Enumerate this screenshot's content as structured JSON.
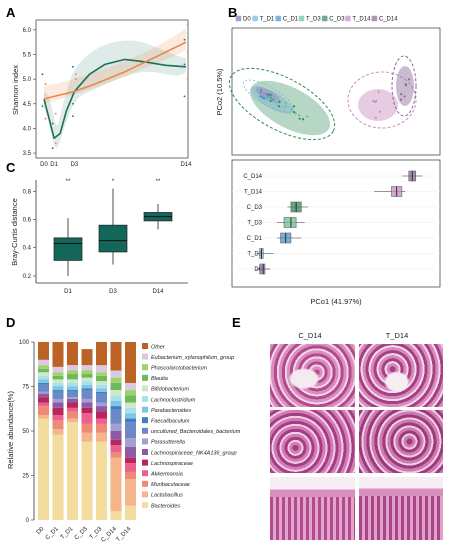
{
  "panels": {
    "a": "A",
    "b": "B",
    "c": "C",
    "d": "D",
    "e": "E"
  },
  "colors": {
    "D0": "#8c6fb0",
    "T_D1": "#74b6e3",
    "C_D1": "#4a95c9",
    "T_D3": "#6cc28e",
    "C_D3": "#2f8a5c",
    "T_D14": "#c98cc0",
    "C_D14": "#8a6a94",
    "shannon_T": "#e8894a",
    "shannon_C": "#1d6e5a",
    "bray": "#13665a"
  },
  "chart_data": [
    {
      "panel": "A",
      "type": "line",
      "ylabel": "Shannon index",
      "xlabel": "",
      "x_ticks": [
        "D0",
        "D1",
        "D3",
        "D14"
      ],
      "x": [
        0,
        1,
        3,
        14
      ],
      "y_ticks": [
        3.5,
        4.0,
        4.5,
        5.0,
        5.5,
        6.0
      ],
      "ylim": [
        3.4,
        6.2
      ],
      "series": [
        {
          "color_key": "shannon_C",
          "x": [
            0,
            0.5,
            1,
            1.6,
            2.2,
            3,
            4.5,
            6,
            8,
            10,
            12,
            14
          ],
          "values": [
            4.6,
            4.2,
            3.8,
            3.9,
            4.35,
            4.75,
            5.1,
            5.3,
            5.4,
            5.35,
            5.28,
            5.25
          ]
        },
        {
          "color_key": "shannon_T",
          "x": [
            0,
            1,
            3,
            5,
            8,
            11,
            14
          ],
          "values": [
            4.6,
            4.65,
            4.75,
            4.9,
            5.15,
            5.45,
            5.75
          ]
        }
      ],
      "points": [
        {
          "x": 0,
          "y": 5.1
        },
        {
          "x": 0,
          "y": 4.9
        },
        {
          "x": 0,
          "y": 4.45
        },
        {
          "x": 0,
          "y": 4.2
        },
        {
          "x": 1,
          "y": 4.1
        },
        {
          "x": 1,
          "y": 3.7
        },
        {
          "x": 1,
          "y": 3.6
        },
        {
          "x": 1,
          "y": 4.3
        },
        {
          "x": 3,
          "y": 5.25
        },
        {
          "x": 3,
          "y": 5.1
        },
        {
          "x": 3,
          "y": 4.5
        },
        {
          "x": 3,
          "y": 5.0
        },
        {
          "x": 3,
          "y": 4.25
        },
        {
          "x": 14,
          "y": 6.1
        },
        {
          "x": 14,
          "y": 5.8
        },
        {
          "x": 14,
          "y": 5.55
        },
        {
          "x": 14,
          "y": 5.3
        },
        {
          "x": 14,
          "y": 5.0
        },
        {
          "x": 14,
          "y": 4.65
        }
      ]
    },
    {
      "panel": "B-top",
      "type": "scatter",
      "xlabel": "",
      "ylabel": "PCo2 (10.5%)",
      "legend": [
        "D0",
        "T_D1",
        "C_D1",
        "T_D3",
        "C_D3",
        "T_D14",
        "C_D14"
      ],
      "legend_position": "top"
    },
    {
      "panel": "B-bottom",
      "type": "box",
      "xlabel": "PCo1 (41.97%)",
      "ylabel": "",
      "categories": [
        "C_D14",
        "T_D14",
        "C_D3",
        "T_D3",
        "C_D1",
        "T_D1",
        "D0"
      ],
      "boxes": [
        {
          "min": 0.34,
          "q1": 0.36,
          "median": 0.37,
          "q3": 0.38,
          "max": 0.4
        },
        {
          "min": 0.26,
          "q1": 0.31,
          "median": 0.325,
          "q3": 0.34,
          "max": 0.35
        },
        {
          "min": 0.01,
          "q1": 0.02,
          "median": 0.035,
          "q3": 0.05,
          "max": 0.07
        },
        {
          "min": -0.02,
          "q1": 0.0,
          "median": 0.02,
          "q3": 0.035,
          "max": 0.06
        },
        {
          "min": -0.02,
          "q1": -0.01,
          "median": 0.005,
          "q3": 0.02,
          "max": 0.05
        },
        {
          "min": -0.08,
          "q1": -0.07,
          "median": -0.065,
          "q3": -0.06,
          "max": -0.03
        },
        {
          "min": -0.08,
          "q1": -0.07,
          "median": -0.06,
          "q3": -0.055,
          "max": -0.04
        }
      ],
      "xlim": [
        -0.15,
        0.45
      ]
    },
    {
      "panel": "C",
      "type": "box",
      "ylabel": "Bray-Curtis distance",
      "xlabel": "",
      "categories": [
        "D1",
        "D3",
        "D14"
      ],
      "significance": [
        "**",
        "*",
        "**"
      ],
      "y_ticks": [
        0.2,
        0.4,
        0.6,
        0.8
      ],
      "ylim": [
        0.15,
        0.88
      ],
      "boxes": [
        {
          "min": 0.2,
          "q1": 0.31,
          "median": 0.43,
          "q3": 0.47,
          "max": 0.61
        },
        {
          "min": 0.28,
          "q1": 0.37,
          "median": 0.45,
          "q3": 0.56,
          "max": 0.82
        },
        {
          "min": 0.53,
          "q1": 0.59,
          "median": 0.62,
          "q3": 0.65,
          "max": 0.71
        }
      ]
    },
    {
      "panel": "D",
      "type": "bar",
      "ylabel": "Relative abundance(%)",
      "xlabel": "",
      "categories": [
        "D0",
        "C_D1",
        "T_D1",
        "C_D3",
        "T_D3",
        "C_D14",
        "T_D14"
      ],
      "y_ticks": [
        0,
        25,
        50,
        75,
        100
      ],
      "ylim": [
        0,
        100
      ],
      "series": [
        {
          "name": "Bacteroides",
          "color": "#f2dc9e",
          "values": [
            57,
            48,
            55,
            44,
            44,
            5,
            8
          ]
        },
        {
          "name": "Lactobacillus",
          "color": "#f6b48b",
          "values": [
            2,
            3,
            2,
            5,
            5,
            30,
            15
          ]
        },
        {
          "name": "Muribaculaceae",
          "color": "#ef8a75",
          "values": [
            5,
            5,
            4,
            5,
            5,
            3,
            4
          ]
        },
        {
          "name": "Akkermansia",
          "color": "#e8618f",
          "values": [
            2,
            3,
            2,
            6,
            3,
            4,
            5
          ]
        },
        {
          "name": "Lachnospiraceae",
          "color": "#b7275a",
          "values": [
            3,
            4,
            3,
            3,
            4,
            3,
            3
          ]
        },
        {
          "name": "Lachnospiraceae_NK4A136_group",
          "color": "#8f5aa5",
          "values": [
            2,
            3,
            2,
            3,
            3,
            5,
            6
          ]
        },
        {
          "name": "Parasutterella",
          "color": "#a39fd1",
          "values": [
            1,
            2,
            1,
            2,
            2,
            4,
            5
          ]
        },
        {
          "name": "uncultured_Bacteroidales_bacterium",
          "color": "#6b89c6",
          "values": [
            4,
            4,
            3,
            5,
            5,
            8,
            9
          ]
        },
        {
          "name": "Faecalibaculum",
          "color": "#3f7fbf",
          "values": [
            1,
            1,
            1,
            1,
            1,
            2,
            2
          ]
        },
        {
          "name": "Parabacteroides",
          "color": "#7ec6e2",
          "values": [
            2,
            2,
            2,
            2,
            2,
            3,
            3
          ]
        },
        {
          "name": "Lachnoclostridium",
          "color": "#a7e1e9",
          "values": [
            2,
            2,
            2,
            2,
            2,
            3,
            3
          ]
        },
        {
          "name": "Bifidobacterium",
          "color": "#cfe8c4",
          "values": [
            2,
            2,
            2,
            2,
            2,
            3,
            3
          ]
        },
        {
          "name": "Blautia",
          "color": "#70b85d",
          "values": [
            2,
            2,
            3,
            2,
            3,
            4,
            4
          ]
        },
        {
          "name": "Phascolarctobacterium",
          "color": "#a0d26a",
          "values": [
            2,
            2,
            2,
            2,
            2,
            3,
            3
          ]
        },
        {
          "name": "Eubacterium_xylanophilum_group",
          "color": "#d9c9e2",
          "values": [
            3,
            3,
            3,
            3,
            4,
            4,
            4
          ]
        },
        {
          "name": "Other",
          "color": "#bc6224",
          "values": [
            10,
            14,
            13,
            9,
            13,
            16,
            23
          ]
        }
      ]
    }
  ],
  "histology": {
    "col1": "C_D14",
    "col2": "T_D14"
  }
}
